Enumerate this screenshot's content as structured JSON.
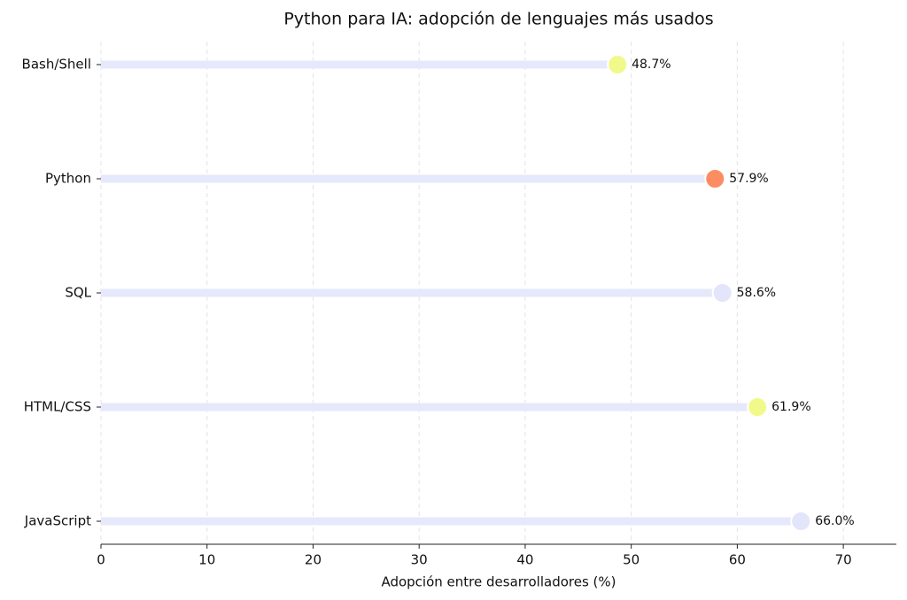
{
  "chart_data": {
    "type": "lollipop",
    "title": "Python para IA: adopción de lenguajes más usados",
    "x_label": "Adopción entre desarrolladores (%)",
    "categories": [
      "Bash/Shell",
      "Python",
      "SQL",
      "HTML/CSS",
      "JavaScript"
    ],
    "values": [
      48.7,
      57.9,
      58.6,
      61.9,
      66.0
    ],
    "value_labels": [
      "48.7%",
      "57.9%",
      "58.6%",
      "61.9%",
      "66.0%"
    ],
    "colors": [
      "#f2f98b",
      "#fc8d62",
      "#e3e5fb",
      "#f2f98b",
      "#e3e5fb"
    ],
    "stem_color": "#e6e9fb",
    "xlim": [
      0,
      75
    ],
    "xticks": [
      0,
      10,
      20,
      30,
      40,
      50,
      60,
      70
    ],
    "grid": true
  }
}
